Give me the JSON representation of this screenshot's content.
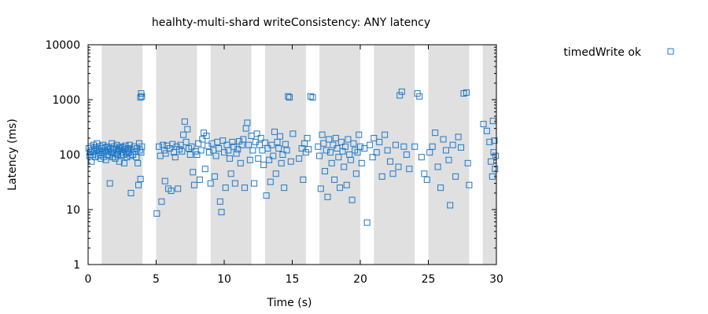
{
  "chart_data": {
    "type": "scatter",
    "title": "healhty-multi-shard writeConsistency: ANY latency",
    "xlabel": "Time (s)",
    "ylabel": "Latency (ms)",
    "xlim": [
      0,
      30
    ],
    "ylim": [
      1,
      10000
    ],
    "yscale": "log",
    "xticks": [
      "0",
      "5",
      "10",
      "15",
      "20",
      "25",
      "30"
    ],
    "yticks": [
      "1",
      "10",
      "100",
      "1000",
      "10000"
    ],
    "shaded_intervals": [
      [
        1,
        4
      ],
      [
        5,
        8
      ],
      [
        9,
        12
      ],
      [
        13,
        16
      ],
      [
        17,
        20
      ],
      [
        21,
        24
      ],
      [
        25,
        28
      ],
      [
        29,
        30
      ]
    ],
    "legend_position": "top-right",
    "series": [
      {
        "name": "timedWrite ok",
        "color": "#1f78c8",
        "marker": "open-square",
        "points": [
          [
            0.05,
            130
          ],
          [
            0.1,
            95
          ],
          [
            0.15,
            110
          ],
          [
            0.2,
            140
          ],
          [
            0.25,
            75
          ],
          [
            0.3,
            120
          ],
          [
            0.35,
            100
          ],
          [
            0.4,
            150
          ],
          [
            0.45,
            115
          ],
          [
            0.5,
            90
          ],
          [
            0.55,
            135
          ],
          [
            0.6,
            105
          ],
          [
            0.65,
            160
          ],
          [
            0.7,
            125
          ],
          [
            0.75,
            95
          ],
          [
            0.8,
            118
          ],
          [
            0.85,
            142
          ],
          [
            0.9,
            100
          ],
          [
            0.95,
            85
          ],
          [
            1.0,
            130
          ],
          [
            1.05,
            110
          ],
          [
            1.1,
            150
          ],
          [
            1.15,
            92
          ],
          [
            1.2,
            120
          ],
          [
            1.25,
            135
          ],
          [
            1.3,
            80
          ],
          [
            1.35,
            115
          ],
          [
            1.4,
            140
          ],
          [
            1.45,
            100
          ],
          [
            1.5,
            125
          ],
          [
            1.55,
            95
          ],
          [
            1.6,
            30
          ],
          [
            1.65,
            130
          ],
          [
            1.7,
            110
          ],
          [
            1.75,
            160
          ],
          [
            1.8,
            90
          ],
          [
            1.85,
            120
          ],
          [
            1.9,
            140
          ],
          [
            1.95,
            105
          ],
          [
            2.0,
            85
          ],
          [
            2.05,
            125
          ],
          [
            2.1,
            150
          ],
          [
            2.15,
            100
          ],
          [
            2.2,
            115
          ],
          [
            2.25,
            130
          ],
          [
            2.3,
            75
          ],
          [
            2.35,
            120
          ],
          [
            2.4,
            140
          ],
          [
            2.45,
            95
          ],
          [
            2.5,
            110
          ],
          [
            2.55,
            135
          ],
          [
            2.6,
            100
          ],
          [
            2.65,
            70
          ],
          [
            2.7,
            125
          ],
          [
            2.75,
            145
          ],
          [
            2.8,
            105
          ],
          [
            2.85,
            90
          ],
          [
            2.9,
            120
          ],
          [
            2.95,
            130
          ],
          [
            3.0,
            110
          ],
          [
            3.05,
            150
          ],
          [
            3.1,
            95
          ],
          [
            3.15,
            20
          ],
          [
            3.2,
            125
          ],
          [
            3.3,
            100
          ],
          [
            3.4,
            140
          ],
          [
            3.5,
            115
          ],
          [
            3.55,
            90
          ],
          [
            3.6,
            130
          ],
          [
            3.65,
            70
          ],
          [
            3.7,
            28
          ],
          [
            3.75,
            160
          ],
          [
            3.8,
            120
          ],
          [
            3.85,
            36
          ],
          [
            3.9,
            110
          ],
          [
            3.95,
            140
          ],
          [
            3.85,
            1100
          ],
          [
            3.9,
            1300
          ],
          [
            3.95,
            1150
          ],
          [
            5.05,
            8.5
          ],
          [
            5.2,
            140
          ],
          [
            5.3,
            95
          ],
          [
            5.4,
            14
          ],
          [
            5.5,
            150
          ],
          [
            5.6,
            120
          ],
          [
            5.65,
            33
          ],
          [
            5.7,
            105
          ],
          [
            5.8,
            145
          ],
          [
            5.9,
            24
          ],
          [
            6.0,
            130
          ],
          [
            6.1,
            22
          ],
          [
            6.2,
            155
          ],
          [
            6.3,
            110
          ],
          [
            6.4,
            90
          ],
          [
            6.5,
            140
          ],
          [
            6.6,
            24
          ],
          [
            6.7,
            125
          ],
          [
            6.8,
            150
          ],
          [
            6.9,
            115
          ],
          [
            7.0,
            230
          ],
          [
            7.1,
            400
          ],
          [
            7.2,
            170
          ],
          [
            7.3,
            290
          ],
          [
            7.4,
            130
          ],
          [
            7.5,
            100
          ],
          [
            7.6,
            140
          ],
          [
            7.7,
            48
          ],
          [
            7.8,
            28
          ],
          [
            7.9,
            115
          ],
          [
            8.0,
            100
          ],
          [
            8.1,
            160
          ],
          [
            8.2,
            35
          ],
          [
            8.3,
            120
          ],
          [
            8.4,
            190
          ],
          [
            8.5,
            250
          ],
          [
            8.6,
            55
          ],
          [
            8.7,
            220
          ],
          [
            8.8,
            145
          ],
          [
            8.9,
            110
          ],
          [
            9.0,
            30
          ],
          [
            9.1,
            160
          ],
          [
            9.2,
            120
          ],
          [
            9.3,
            40
          ],
          [
            9.4,
            95
          ],
          [
            9.5,
            170
          ],
          [
            9.6,
            130
          ],
          [
            9.7,
            14
          ],
          [
            9.8,
            9
          ],
          [
            9.9,
            180
          ],
          [
            10.0,
            110
          ],
          [
            10.1,
            25
          ],
          [
            10.2,
            150
          ],
          [
            10.3,
            120
          ],
          [
            10.4,
            85
          ],
          [
            10.5,
            45
          ],
          [
            10.6,
            170
          ],
          [
            10.7,
            140
          ],
          [
            10.8,
            30
          ],
          [
            10.9,
            105
          ],
          [
            11.0,
            125
          ],
          [
            11.1,
            175
          ],
          [
            11.2,
            70
          ],
          [
            11.3,
            150
          ],
          [
            11.4,
            190
          ],
          [
            11.5,
            25
          ],
          [
            11.6,
            300
          ],
          [
            11.7,
            380
          ],
          [
            11.8,
            150
          ],
          [
            11.9,
            80
          ],
          [
            12.0,
            220
          ],
          [
            12.1,
            120
          ],
          [
            12.2,
            30
          ],
          [
            12.3,
            170
          ],
          [
            12.4,
            240
          ],
          [
            12.5,
            85
          ],
          [
            12.6,
            150
          ],
          [
            12.7,
            200
          ],
          [
            12.8,
            120
          ],
          [
            12.9,
            65
          ],
          [
            13.0,
            165
          ],
          [
            13.1,
            18
          ],
          [
            13.2,
            130
          ],
          [
            13.3,
            80
          ],
          [
            13.4,
            32
          ],
          [
            13.5,
            150
          ],
          [
            13.6,
            95
          ],
          [
            13.7,
            260
          ],
          [
            13.8,
            45
          ],
          [
            13.9,
            170
          ],
          [
            14.0,
            130
          ],
          [
            14.1,
            215
          ],
          [
            14.2,
            70
          ],
          [
            14.3,
            100
          ],
          [
            14.4,
            25
          ],
          [
            14.5,
            155
          ],
          [
            14.6,
            120
          ],
          [
            14.7,
            1150
          ],
          [
            14.8,
            1100
          ],
          [
            14.9,
            75
          ],
          [
            15.05,
            240
          ],
          [
            15.5,
            85
          ],
          [
            15.7,
            130
          ],
          [
            15.8,
            35
          ],
          [
            15.9,
            160
          ],
          [
            16.0,
            110
          ],
          [
            16.1,
            200
          ],
          [
            16.2,
            125
          ],
          [
            16.35,
            1150
          ],
          [
            16.5,
            1100
          ],
          [
            16.9,
            140
          ],
          [
            17.0,
            95
          ],
          [
            17.1,
            24
          ],
          [
            17.2,
            230
          ],
          [
            17.3,
            160
          ],
          [
            17.4,
            50
          ],
          [
            17.5,
            120
          ],
          [
            17.6,
            17
          ],
          [
            17.7,
            190
          ],
          [
            17.8,
            110
          ],
          [
            17.9,
            70
          ],
          [
            18.0,
            150
          ],
          [
            18.1,
            35
          ],
          [
            18.2,
            200
          ],
          [
            18.3,
            130
          ],
          [
            18.4,
            90
          ],
          [
            18.5,
            25
          ],
          [
            18.6,
            170
          ],
          [
            18.7,
            115
          ],
          [
            18.8,
            60
          ],
          [
            18.9,
            140
          ],
          [
            19.0,
            28
          ],
          [
            19.1,
            190
          ],
          [
            19.2,
            100
          ],
          [
            19.3,
            80
          ],
          [
            19.4,
            15
          ],
          [
            19.5,
            160
          ],
          [
            19.6,
            120
          ],
          [
            19.7,
            45
          ],
          [
            19.8,
            110
          ],
          [
            19.9,
            230
          ],
          [
            20.0,
            140
          ],
          [
            20.1,
            70
          ],
          [
            20.3,
            130
          ],
          [
            20.5,
            5.8
          ],
          [
            20.7,
            150
          ],
          [
            20.9,
            90
          ],
          [
            21.0,
            200
          ],
          [
            21.2,
            110
          ],
          [
            21.4,
            170
          ],
          [
            21.6,
            40
          ],
          [
            21.8,
            230
          ],
          [
            22.0,
            120
          ],
          [
            22.2,
            75
          ],
          [
            22.4,
            45
          ],
          [
            22.6,
            150
          ],
          [
            22.8,
            60
          ],
          [
            22.9,
            1200
          ],
          [
            23.05,
            1400
          ],
          [
            23.2,
            140
          ],
          [
            23.4,
            100
          ],
          [
            23.6,
            55
          ],
          [
            24.0,
            140
          ],
          [
            24.2,
            1300
          ],
          [
            24.35,
            1150
          ],
          [
            24.5,
            90
          ],
          [
            24.7,
            45
          ],
          [
            24.9,
            35
          ],
          [
            25.1,
            110
          ],
          [
            25.3,
            140
          ],
          [
            25.5,
            250
          ],
          [
            25.7,
            60
          ],
          [
            25.9,
            25
          ],
          [
            26.1,
            190
          ],
          [
            26.3,
            120
          ],
          [
            26.5,
            80
          ],
          [
            26.6,
            12
          ],
          [
            26.8,
            150
          ],
          [
            27.0,
            40
          ],
          [
            27.2,
            210
          ],
          [
            27.4,
            135
          ],
          [
            27.6,
            1300
          ],
          [
            27.8,
            1350
          ],
          [
            27.9,
            70
          ],
          [
            28.0,
            28
          ],
          [
            29.05,
            360
          ],
          [
            29.3,
            270
          ],
          [
            29.5,
            170
          ],
          [
            29.6,
            75
          ],
          [
            29.7,
            40
          ],
          [
            29.75,
            410
          ],
          [
            29.8,
            110
          ],
          [
            29.85,
            180
          ],
          [
            29.9,
            55
          ],
          [
            29.95,
            95
          ]
        ]
      }
    ]
  }
}
